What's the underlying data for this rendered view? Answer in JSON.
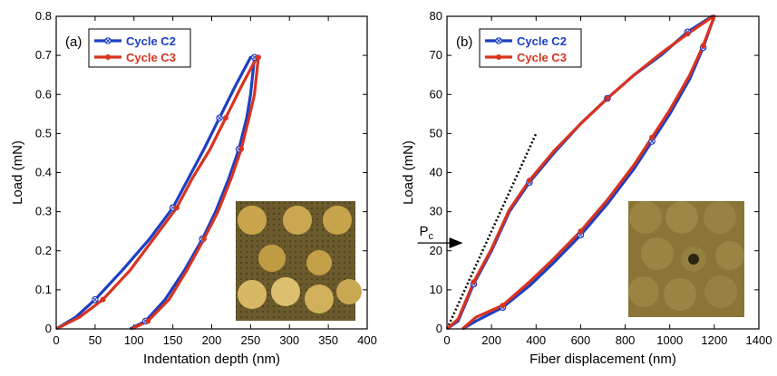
{
  "chart_data": [
    {
      "type": "line",
      "panel_label": "(a)",
      "x_label": "Indentation depth (nm)",
      "y_label": "Load (mN)",
      "xlim": [
        0,
        400
      ],
      "xticks": [
        0,
        50,
        100,
        150,
        200,
        250,
        300,
        350,
        400
      ],
      "ylim": [
        0,
        0.8
      ],
      "yticks": [
        0,
        0.1,
        0.2,
        0.3,
        0.4,
        0.5,
        0.6,
        0.7,
        0.8
      ],
      "series": [
        {
          "name": "Cycle C2",
          "color": "#1c3fc4",
          "marker": "crossed-circle",
          "x": [
            0,
            25,
            50,
            85,
            120,
            150,
            170,
            190,
            210,
            230,
            250,
            255,
            250,
            245,
            235,
            222,
            205,
            188,
            165,
            140,
            115,
            95
          ],
          "values": [
            0,
            0.03,
            0.075,
            0.15,
            0.23,
            0.31,
            0.385,
            0.46,
            0.54,
            0.62,
            0.695,
            0.695,
            0.6,
            0.54,
            0.46,
            0.385,
            0.3,
            0.23,
            0.15,
            0.075,
            0.02,
            0
          ]
        },
        {
          "name": "Cycle C3",
          "color": "#d8331f",
          "marker": "dot",
          "x": [
            0,
            30,
            60,
            95,
            125,
            155,
            175,
            198,
            218,
            238,
            258,
            260,
            255,
            248,
            238,
            225,
            208,
            190,
            168,
            145,
            118,
            97
          ],
          "values": [
            0,
            0.03,
            0.075,
            0.15,
            0.23,
            0.31,
            0.385,
            0.46,
            0.54,
            0.62,
            0.695,
            0.695,
            0.6,
            0.54,
            0.46,
            0.385,
            0.3,
            0.23,
            0.15,
            0.075,
            0.02,
            0
          ]
        }
      ]
    },
    {
      "type": "line",
      "panel_label": "(b)",
      "x_label": "Fiber displacement (nm)",
      "y_label": "Load (mN)",
      "xlim": [
        0,
        1400
      ],
      "xticks": [
        0,
        200,
        400,
        600,
        800,
        1000,
        1200,
        1400
      ],
      "ylim": [
        0,
        80
      ],
      "yticks": [
        0,
        10,
        20,
        30,
        40,
        50,
        60,
        70,
        80
      ],
      "annotation": "P",
      "annotation_subscript": "c",
      "tangent": {
        "x": [
          0,
          400
        ],
        "values": [
          0,
          50
        ]
      },
      "series": [
        {
          "name": "Cycle C2",
          "color": "#1c3fc4",
          "marker": "crossed-circle",
          "x": [
            0,
            50,
            120,
            200,
            280,
            370,
            480,
            600,
            720,
            840,
            960,
            1080,
            1190,
            1200,
            1150,
            1090,
            1000,
            920,
            840,
            720,
            600,
            480,
            370,
            250,
            130,
            70
          ],
          "values": [
            0,
            2,
            11.5,
            20,
            30,
            37.5,
            45,
            52.5,
            59,
            65,
            70,
            76,
            80,
            80,
            72,
            64,
            55,
            48,
            41,
            32,
            24,
            17,
            11,
            5.5,
            2,
            0
          ]
        },
        {
          "name": "Cycle C3",
          "color": "#d8331f",
          "marker": "dot",
          "x": [
            0,
            50,
            120,
            200,
            280,
            370,
            480,
            600,
            720,
            840,
            960,
            1080,
            1195,
            1200,
            1150,
            1090,
            1000,
            920,
            840,
            720,
            600,
            480,
            370,
            250,
            130,
            70
          ],
          "values": [
            0,
            2.5,
            12,
            20.5,
            30.5,
            38,
            45.5,
            52.5,
            59,
            65,
            70.5,
            75.5,
            80,
            80,
            72.5,
            65,
            56,
            49,
            42,
            33,
            25,
            18,
            12,
            6,
            3,
            0
          ]
        }
      ]
    }
  ]
}
